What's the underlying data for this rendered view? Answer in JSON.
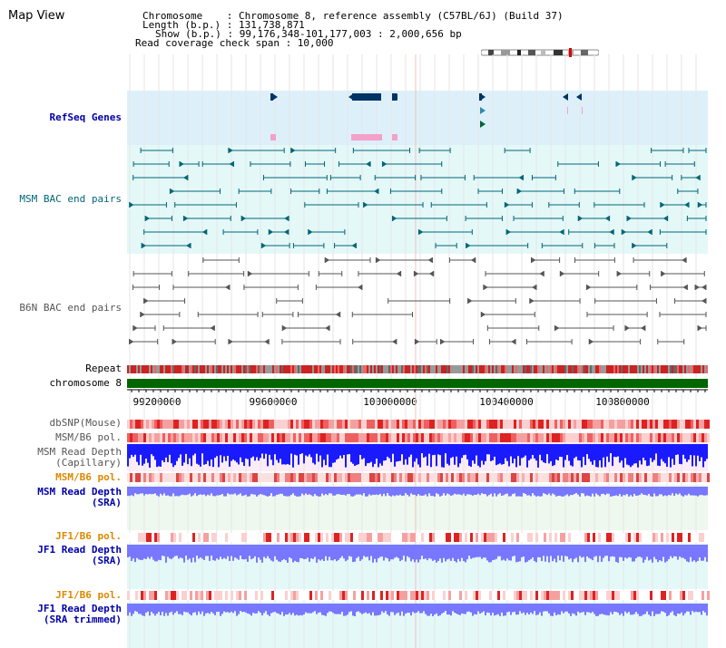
{
  "title": "Map View",
  "info": {
    "line1": "Chromosome    : Chromosome 8, reference assembly (C57BL/6J) (Build 37)",
    "line2": "Length (b.p.) : 131,738,871",
    "line3": "Show (b.p.) : 99,176,348-101,177,003 : 2,000,656 bp",
    "line4": "Read coverage check span : 10,000"
  },
  "labels": {
    "refseq": "RefSeq Genes",
    "msm_bac": "MSM BAC end pairs",
    "b6n_bac": "B6N BAC end pairs",
    "repeat": "Repeat",
    "chromosome": "chromosome 8",
    "dbsnp": "dbSNP(Mouse)",
    "msm_b6_pol1": "MSM/B6 pol.",
    "msm_depth_cap": "MSM Read Depth\n(Capillary)",
    "msm_b6_pol2": "MSM/B6 pol.",
    "msm_depth_sra": "MSM Read Depth\n(SRA)",
    "jf1_b6_pol1": "JF1/B6 pol.",
    "jf1_depth_sra": "JF1 Read Depth\n(SRA)",
    "jf1_b6_pol2": "JF1/B6 pol.",
    "jf1_depth_trim": "JF1 Read Depth\n(SRA trimmed)"
  },
  "axis": {
    "ticks": [
      "99200000",
      "99600000",
      "100000000",
      "100400000",
      "100800000"
    ]
  },
  "colors": {
    "refseq_bg": "#ddf0fa",
    "bac_bg": "#e4f8f8",
    "gene_dark": "#003366",
    "gene_pink": "#f4a0c8",
    "msm_bac": "#006677",
    "b6n_bac": "#555555",
    "chromosome": "#006600",
    "depth_capillary": "#1a1aff",
    "depth_sra": "#7777ff"
  }
}
